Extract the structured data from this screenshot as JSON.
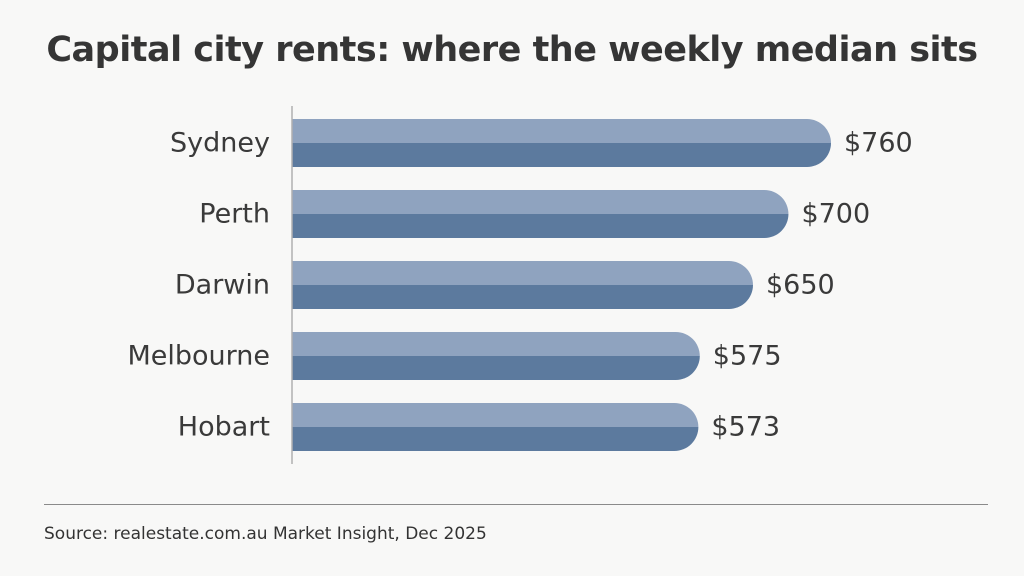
{
  "colors": {
    "bar_top": "#8fa3bf",
    "bar_bottom": "#5c7a9e",
    "axis": "#b0b0b0",
    "background": "#f8f8f7"
  },
  "chart_data": {
    "type": "bar",
    "orientation": "horizontal",
    "title": "Capital city rents: where the weekly median sits",
    "xlabel": "",
    "ylabel": "",
    "categories": [
      "Sydney",
      "Perth",
      "Darwin",
      "Melbourne",
      "Hobart"
    ],
    "values": [
      760,
      700,
      650,
      575,
      573
    ],
    "value_labels": [
      "$760",
      "$700",
      "$650",
      "$575",
      "$573"
    ],
    "xlim": [
      0,
      760
    ],
    "grid": false,
    "legend": "none"
  },
  "footer": {
    "source": "Source: realestate.com.au Market Insight, Dec 2025"
  }
}
